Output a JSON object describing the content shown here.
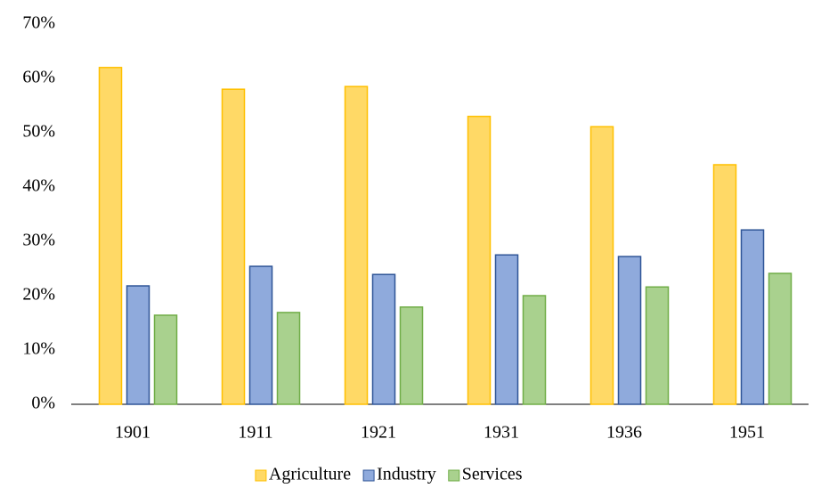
{
  "chart_data": {
    "type": "bar",
    "categories": [
      "1901",
      "1911",
      "1921",
      "1931",
      "1936",
      "1951"
    ],
    "series": [
      {
        "name": "Agriculture",
        "color": "#ffd966",
        "edgecolor": "#ffc000",
        "values": [
          62.0,
          58.0,
          58.5,
          53.0,
          51.1,
          44.1
        ]
      },
      {
        "name": "Industry",
        "color": "#8faadc",
        "edgecolor": "#2f5597",
        "values": [
          21.8,
          25.4,
          23.9,
          27.5,
          27.2,
          32.1
        ]
      },
      {
        "name": "Services",
        "color": "#a9d18e",
        "edgecolor": "#70ad47",
        "values": [
          16.4,
          16.9,
          17.9,
          20.0,
          21.6,
          24.1
        ]
      }
    ],
    "ylim": [
      0,
      70
    ],
    "yticks": [
      {
        "value": 0,
        "label": "0%"
      },
      {
        "value": 10,
        "label": "10%"
      },
      {
        "value": 20,
        "label": "20%"
      },
      {
        "value": 30,
        "label": "30%"
      },
      {
        "value": 40,
        "label": "40%"
      },
      {
        "value": 50,
        "label": "50%"
      },
      {
        "value": 60,
        "label": "60%"
      },
      {
        "value": 70,
        "label": "70%"
      }
    ],
    "grid": false,
    "legend": "bottom"
  }
}
